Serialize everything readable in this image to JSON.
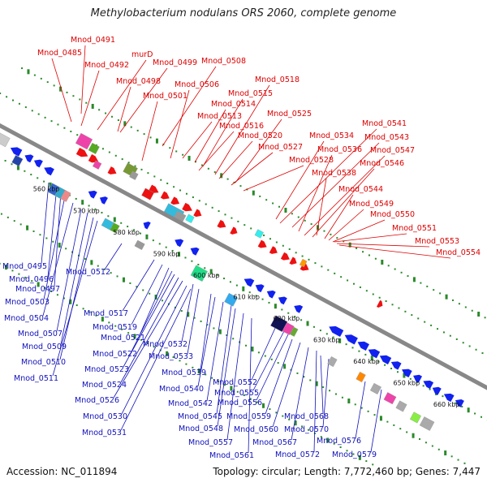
{
  "header": {
    "title": "Methylobacterium nodulans ORS 2060, complete genome"
  },
  "footer": {
    "accession": "Accession: NC_011894",
    "summary": "Topology: circular; Length: 7,772,460 bp; Genes: 7,447"
  },
  "colors": {
    "backbone": "#888888",
    "grid_dots": "#2a8a2a",
    "top_labels": "#dd0000",
    "bottom_labels": "#1111bb",
    "forward_genes": "#ee1111",
    "reverse_genes": "#1122ee"
  },
  "scale_ticks": [
    "560 kbp",
    "570 kbp",
    "580 kbp",
    "590 kbp",
    "600 kbp",
    "610 kbp",
    "620 kbp",
    "630 kbp",
    "640 kbp",
    "650 kbp",
    "660 kbp"
  ],
  "top_labels": [
    "Mnod_0491",
    "Mnod_0485",
    "murD",
    "Mnod_0492",
    "Mnod_0499",
    "Mnod_0508",
    "Mnod_0498",
    "Mnod_0506",
    "Mnod_0518",
    "Mnod_0501",
    "Mnod_0515",
    "Mnod_0514",
    "Mnod_0513",
    "Mnod_0525",
    "Mnod_0516",
    "Mnod_0520",
    "Mnod_0541",
    "Mnod_0534",
    "Mnod_0543",
    "Mnod_0527",
    "Mnod_0536",
    "Mnod_0547",
    "Mnod_0528",
    "Mnod_0546",
    "Mnod_0538",
    "Mnod_0544",
    "Mnod_0549",
    "Mnod_0550",
    "Mnod_0551",
    "Mnod_0553",
    "Mnod_0554"
  ],
  "bottom_labels": [
    "Mnod_0495",
    "Mnod_0496",
    "Mnod_0512",
    "Mnod_0497",
    "Mnod_0503",
    "Mnod_0504",
    "Mnod_0517",
    "Mnod_0507",
    "Mnod_0519",
    "Mnod_0509",
    "Mnod_0521",
    "Mnod_0522",
    "Mnod_0532",
    "Mnod_0510",
    "Mnod_0533",
    "Mnod_0523",
    "Mnod_0511",
    "Mnod_0539",
    "Mnod_0524",
    "Mnod_0540",
    "Mnod_0552",
    "Mnod_0526",
    "Mnod_0555",
    "Mnod_0542",
    "Mnod_0556",
    "Mnod_0530",
    "Mnod_0545",
    "Mnod_0559",
    "Mnod_0568",
    "Mnod_0548",
    "Mnod_0560",
    "Mnod_0570",
    "Mnod_0531",
    "Mnod_0557",
    "Mnod_0567",
    "Mnod_0576",
    "Mnod_0561",
    "Mnod_0572",
    "Mnod_0579"
  ]
}
